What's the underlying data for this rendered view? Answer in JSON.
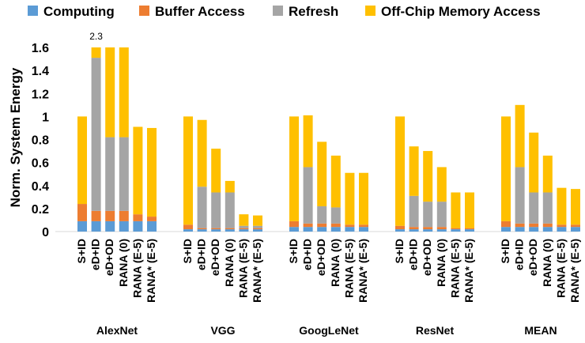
{
  "chart_data": {
    "type": "bar",
    "stacked": true,
    "ylabel": "Norm. System Energy",
    "ylim": [
      0,
      1.6
    ],
    "yticks": [
      "0",
      "0.2",
      "0.4",
      "0.6",
      "0.8",
      "1",
      "1.2",
      "1.4",
      "1.6"
    ],
    "grid": false,
    "legend_position": "top",
    "series_names": [
      "Computing",
      "Buffer Access",
      "Refresh",
      "Off-Chip Memory Access"
    ],
    "series_colors": [
      "#5B9BD5",
      "#ED7D31",
      "#A5A5A5",
      "#FFC000"
    ],
    "bar_labels": [
      "S+ID",
      "eD+ID",
      "eD+OD",
      "RANA (0)",
      "RANA (E-5)",
      "RANA* (E-5)"
    ],
    "groups": [
      {
        "name": "AlexNet",
        "bars": [
          [
            0.09,
            0.15,
            0.0,
            0.76
          ],
          [
            0.09,
            0.09,
            1.33,
            0.79
          ],
          [
            0.09,
            0.09,
            0.64,
            0.78
          ],
          [
            0.09,
            0.09,
            0.64,
            0.78
          ],
          [
            0.09,
            0.06,
            0.0,
            0.76
          ],
          [
            0.09,
            0.04,
            0.0,
            0.77
          ]
        ]
      },
      {
        "name": "VGG",
        "bars": [
          [
            0.02,
            0.04,
            0.0,
            0.94
          ],
          [
            0.02,
            0.01,
            0.36,
            0.58
          ],
          [
            0.02,
            0.01,
            0.31,
            0.38
          ],
          [
            0.02,
            0.01,
            0.31,
            0.1
          ],
          [
            0.02,
            0.01,
            0.02,
            0.1
          ],
          [
            0.02,
            0.01,
            0.02,
            0.09
          ]
        ]
      },
      {
        "name": "GoogLeNet",
        "bars": [
          [
            0.04,
            0.05,
            0.0,
            0.91
          ],
          [
            0.04,
            0.03,
            0.49,
            0.45
          ],
          [
            0.04,
            0.03,
            0.15,
            0.56
          ],
          [
            0.04,
            0.03,
            0.14,
            0.45
          ],
          [
            0.04,
            0.02,
            0.0,
            0.45
          ],
          [
            0.04,
            0.02,
            0.0,
            0.45
          ]
        ]
      },
      {
        "name": "ResNet",
        "bars": [
          [
            0.02,
            0.03,
            0.0,
            0.95
          ],
          [
            0.02,
            0.02,
            0.27,
            0.43
          ],
          [
            0.02,
            0.02,
            0.22,
            0.44
          ],
          [
            0.02,
            0.02,
            0.22,
            0.3
          ],
          [
            0.02,
            0.01,
            0.0,
            0.31
          ],
          [
            0.02,
            0.01,
            0.0,
            0.31
          ]
        ]
      },
      {
        "name": "MEAN",
        "bars": [
          [
            0.04,
            0.05,
            0.0,
            0.91
          ],
          [
            0.04,
            0.03,
            0.49,
            0.54
          ],
          [
            0.04,
            0.03,
            0.27,
            0.52
          ],
          [
            0.04,
            0.03,
            0.27,
            0.32
          ],
          [
            0.04,
            0.02,
            0.0,
            0.32
          ],
          [
            0.04,
            0.02,
            0.0,
            0.31
          ]
        ]
      }
    ],
    "annotations": [
      {
        "text": "2.3",
        "group": 0,
        "bar": 1
      }
    ]
  }
}
